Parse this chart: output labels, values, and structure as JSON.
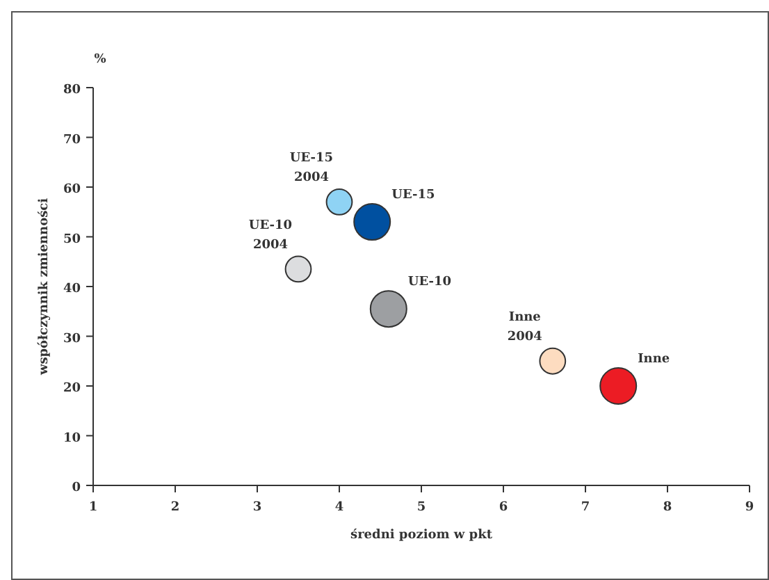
{
  "chart_data": {
    "type": "bubble",
    "xlabel": "średni poziom w pkt",
    "ylabel": "współczynnik zmienności",
    "annotations": [
      "%"
    ],
    "xlim": [
      1,
      9
    ],
    "xticks": [
      1,
      2,
      3,
      4,
      5,
      6,
      7,
      8,
      9
    ],
    "ylim": [
      0,
      80
    ],
    "yticks": [
      0,
      10,
      20,
      30,
      40,
      50,
      60,
      70,
      80
    ],
    "grid": false,
    "series": [
      {
        "name": "UE-15 2004",
        "color": "#8fd3f4",
        "x": [
          4.0
        ],
        "values": [
          57
        ],
        "sizes": [
          0.5
        ]
      },
      {
        "name": "UE-15",
        "color": "#0050a0",
        "x": [
          4.4
        ],
        "values": [
          53
        ],
        "sizes": [
          1
        ]
      },
      {
        "name": "UE-10 2004",
        "color": "#dcdddf",
        "x": [
          3.5
        ],
        "values": [
          43.5
        ],
        "sizes": [
          0.5
        ]
      },
      {
        "name": "UE-10",
        "color": "#9d9fa2",
        "x": [
          4.6
        ],
        "values": [
          35.5
        ],
        "sizes": [
          1
        ]
      },
      {
        "name": "Inne 2004",
        "color": "#fddcc0",
        "x": [
          6.6
        ],
        "values": [
          25
        ],
        "sizes": [
          0.5
        ]
      },
      {
        "name": "Inne",
        "color": "#ec1c24",
        "x": [
          7.4
        ],
        "values": [
          20
        ],
        "sizes": [
          1
        ]
      }
    ]
  }
}
